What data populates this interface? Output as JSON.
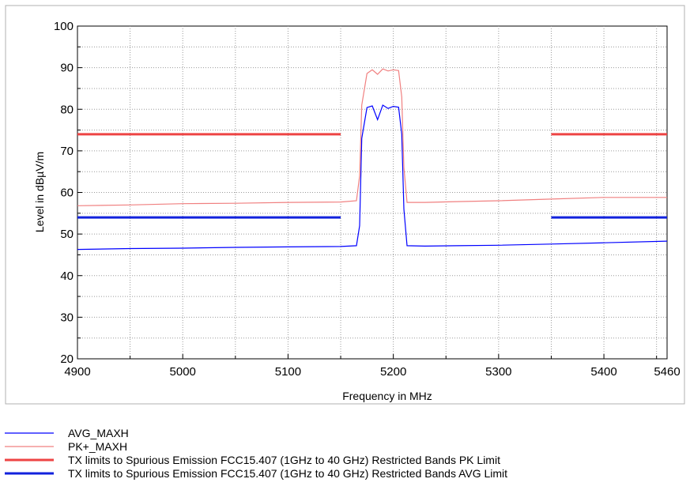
{
  "chart_data": {
    "type": "line",
    "title": "",
    "xlabel": "Frequency in MHz",
    "ylabel": "Level in dBµV/m",
    "xlim": [
      4900,
      5460
    ],
    "ylim": [
      20,
      100
    ],
    "x_ticks": [
      4900,
      5000,
      5100,
      5200,
      5300,
      5400,
      5460
    ],
    "y_ticks": [
      20,
      30,
      40,
      50,
      60,
      70,
      80,
      90,
      100
    ],
    "grid": true,
    "legend_position": "bottom",
    "series": [
      {
        "name": "AVG_MAXH",
        "color": "#0000ff",
        "style": "thin",
        "x": [
          4900,
          4950,
          5000,
          5050,
          5100,
          5150,
          5165,
          5168,
          5170,
          5175,
          5180,
          5185,
          5190,
          5195,
          5200,
          5205,
          5208,
          5210,
          5213,
          5230,
          5260,
          5300,
          5350,
          5400,
          5460
        ],
        "y": [
          46.3,
          46.5,
          46.6,
          46.8,
          46.9,
          47.0,
          47.2,
          52.0,
          73.0,
          80.4,
          80.8,
          77.5,
          81.0,
          80.2,
          80.7,
          80.5,
          74.0,
          56.0,
          47.2,
          47.1,
          47.2,
          47.3,
          47.6,
          47.9,
          48.3
        ]
      },
      {
        "name": "PK+_MAXH",
        "color": "#f08080",
        "style": "thin",
        "x": [
          4900,
          4950,
          5000,
          5050,
          5100,
          5150,
          5165,
          5168,
          5170,
          5175,
          5180,
          5185,
          5190,
          5195,
          5200,
          5205,
          5208,
          5210,
          5213,
          5230,
          5260,
          5300,
          5350,
          5400,
          5460
        ],
        "y": [
          56.8,
          57.0,
          57.3,
          57.4,
          57.6,
          57.7,
          58.0,
          64.0,
          81.0,
          88.6,
          89.5,
          88.4,
          89.7,
          89.2,
          89.5,
          89.3,
          83.0,
          66.0,
          57.6,
          57.6,
          57.8,
          58.0,
          58.4,
          58.8,
          58.8
        ]
      },
      {
        "name": "TX limits to Spurious Emission FCC15.407 (1GHz to 40 GHz) Restricted Bands PK Limit",
        "color": "#ee4444",
        "style": "thick",
        "segments": [
          {
            "x": [
              4900,
              5150
            ],
            "y": [
              74,
              74
            ]
          },
          {
            "x": [
              5350,
              5460
            ],
            "y": [
              74,
              74
            ]
          }
        ]
      },
      {
        "name": "TX limits to Spurious Emission FCC15.407 (1GHz to 40 GHz) Restricted Bands AVG Limit",
        "color": "#1122dd",
        "style": "thick",
        "segments": [
          {
            "x": [
              4900,
              5150
            ],
            "y": [
              54,
              54
            ]
          },
          {
            "x": [
              5350,
              5460
            ],
            "y": [
              54,
              54
            ]
          }
        ]
      }
    ]
  }
}
